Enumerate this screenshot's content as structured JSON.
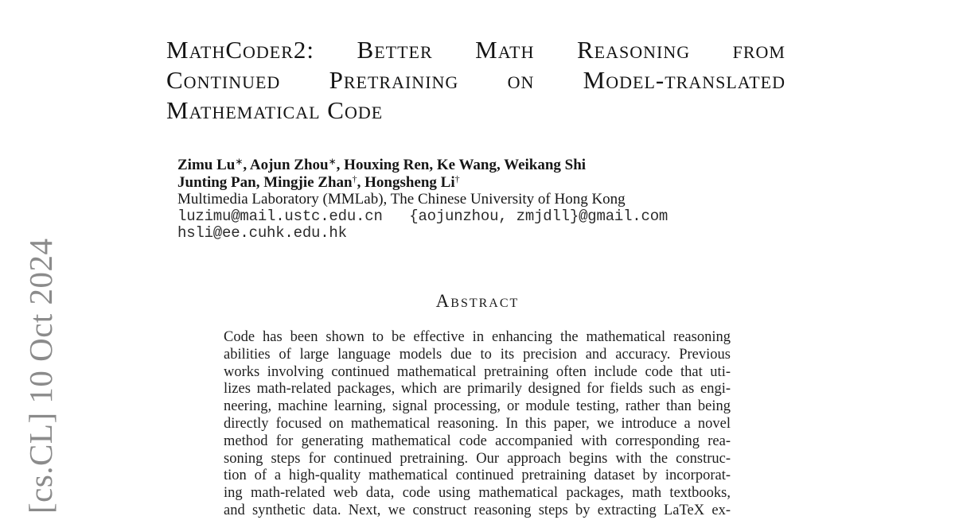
{
  "page": {
    "background": "#ffffff",
    "body_text_color": "#1f1f1f",
    "stamp_color": "#8b8b8b"
  },
  "arxiv_stamp": {
    "text": "[cs.CL] 10 Oct 2024"
  },
  "title": {
    "lines": [
      "MathCoder2: Better Math Reasoning from",
      "Continued Pretraining on Model-translated",
      "Mathematical Code"
    ]
  },
  "authors": {
    "line1": {
      "seg_a": "Zimu Lu",
      "sup_a": "∗",
      "seg_b": ", Aojun Zhou",
      "sup_b": "∗",
      "seg_c": ", Houxing Ren, Ke Wang, Weikang Shi"
    },
    "line2": {
      "seg_a": "Junting Pan, Mingjie Zhan",
      "sup_a": "†",
      "seg_b": ", Hongsheng Li",
      "sup_b": "†"
    },
    "affiliation": "Multimedia Laboratory (MMLab), The Chinese University of Hong Kong",
    "emails": [
      "luzimu@mail.ustc.edu.cn   {aojunzhou, zmjdll}@gmail.com",
      "hsli@ee.cuhk.edu.hk"
    ]
  },
  "abstract": {
    "heading": "Abstract",
    "lines": [
      "Code has been shown to be effective in enhancing the mathematical reasoning",
      "abilities of large language models due to its precision and accuracy. Previous",
      "works involving continued mathematical pretraining often include code that uti-",
      "lizes math-related packages, which are primarily designed for fields such as engi-",
      "neering, machine learning, signal processing, or module testing, rather than being",
      "directly focused on mathematical reasoning. In this paper, we introduce a novel",
      "method for generating mathematical code accompanied with corresponding rea-",
      "soning steps for continued pretraining. Our approach begins with the construc-",
      "tion of a high-quality mathematical continued pretraining dataset by incorporat-",
      "ing math-related web data, code using mathematical packages, math textbooks,",
      "and synthetic data. Next, we construct reasoning steps by extracting LaTeX ex-"
    ]
  }
}
